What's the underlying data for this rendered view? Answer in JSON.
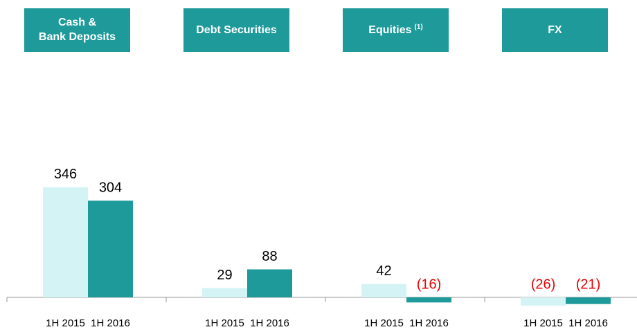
{
  "chart_data": {
    "type": "bar",
    "categories": [
      "Cash & Bank Deposits",
      "Debt Securities",
      "Equities",
      "FX"
    ],
    "category_notes": [
      null,
      null,
      "(1)",
      null
    ],
    "series": [
      {
        "name": "1H 2015",
        "color": "#d4f3f5",
        "values": [
          346,
          29,
          42,
          -26
        ],
        "value_labels": [
          "346",
          "29",
          "42",
          "(26)"
        ]
      },
      {
        "name": "1H 2016",
        "color": "#1f9a9a",
        "values": [
          304,
          88,
          -16,
          -21
        ],
        "value_labels": [
          "304",
          "88",
          "(16)",
          "(21)"
        ]
      }
    ]
  }
}
